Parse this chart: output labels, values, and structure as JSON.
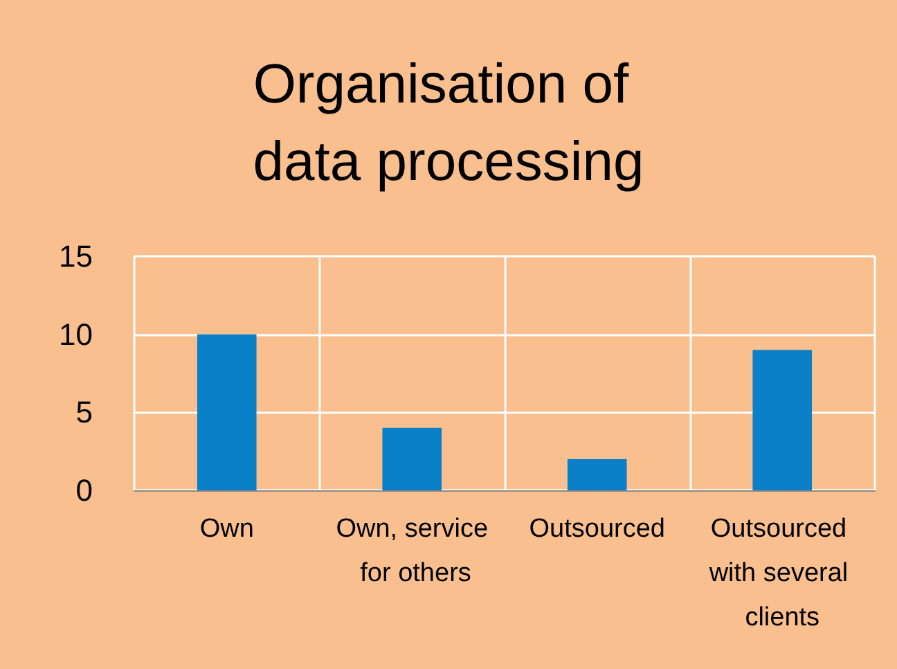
{
  "chart_data": {
    "type": "bar",
    "title": "Organisation of data processing",
    "categories": [
      "Own",
      "Own, service for others",
      "Outsourced",
      "Outsourced with several clients"
    ],
    "values": [
      10,
      4,
      2,
      9
    ],
    "color": "#0a80c8",
    "ylim": [
      0,
      15
    ],
    "yticks": [
      0,
      5,
      10,
      15
    ],
    "grid": true
  }
}
